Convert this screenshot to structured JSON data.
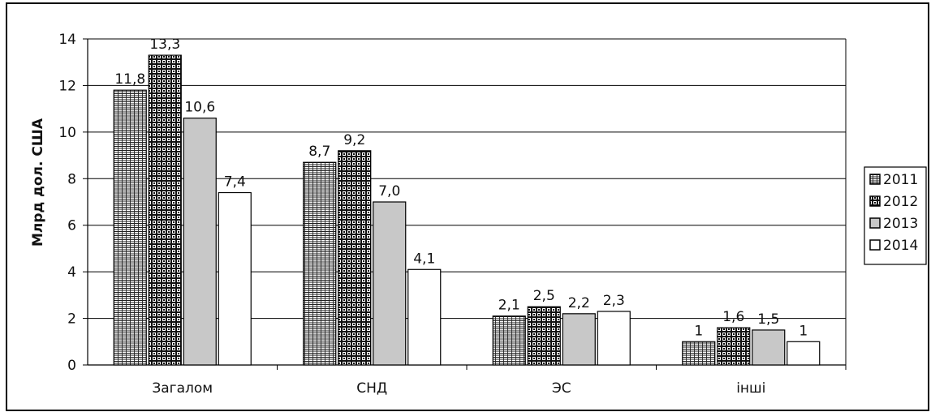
{
  "chart_data": {
    "type": "bar",
    "title": "",
    "xlabel": "",
    "ylabel": "Млрд дол. США",
    "ylim": [
      0,
      14
    ],
    "ytick_step": 2,
    "grid": true,
    "legend_position": "right",
    "categories": [
      "Загалом",
      "СНД",
      "ЭС",
      "інші"
    ],
    "series": [
      {
        "name": "2011",
        "values": [
          11.8,
          8.7,
          2.1,
          1
        ],
        "labels": [
          "11,8",
          "8,7",
          "2,1",
          "1"
        ],
        "pattern": "grid-fine"
      },
      {
        "name": "2012",
        "values": [
          13.3,
          9.2,
          2.5,
          1.6
        ],
        "labels": [
          "13,3",
          "9,2",
          "2,5",
          "1,6"
        ],
        "pattern": "checker-bold"
      },
      {
        "name": "2013",
        "values": [
          10.6,
          7.0,
          2.2,
          1.5
        ],
        "labels": [
          "10,6",
          "7,0",
          "2,2",
          "1,5"
        ],
        "pattern": "solid-gray"
      },
      {
        "name": "2014",
        "values": [
          7.4,
          4.1,
          2.3,
          1
        ],
        "labels": [
          "7,4",
          "4,1",
          "2,3",
          "1"
        ],
        "pattern": "solid-white"
      }
    ],
    "colors": {
      "gray_fill": "#c8c8c8",
      "line": "#000000",
      "grid": "#000000",
      "background": "#ffffff"
    }
  }
}
